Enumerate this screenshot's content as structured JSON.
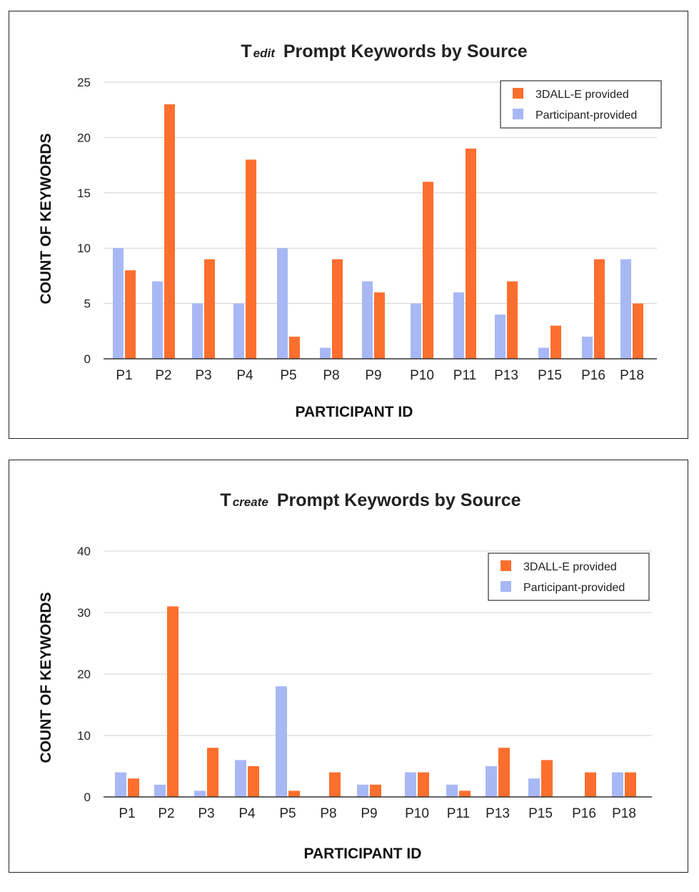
{
  "colors": {
    "provided": "#fc6f2e",
    "participant": "#a7b8f5"
  },
  "chart_data": [
    {
      "type": "bar",
      "title_main": "T",
      "title_sub": "edit",
      "title_rest": "Prompt Keywords by Source",
      "xlabel": "PARTICIPANT ID",
      "ylabel": "COUNT OF KEYWORDS",
      "ylim": [
        0,
        25
      ],
      "yticks": [
        0,
        5,
        10,
        15,
        20,
        25
      ],
      "grid": true,
      "legend_position": "top-right",
      "categories": [
        "P1",
        "P2",
        "P3",
        "P4",
        "P5",
        "P8",
        "P9",
        "P10",
        "P11",
        "P13",
        "P15",
        "P16",
        "P18"
      ],
      "series": [
        {
          "name": "3DALL-E provided",
          "color_key": "provided",
          "values": [
            8,
            23,
            9,
            18,
            2,
            9,
            6,
            16,
            19,
            7,
            3,
            9,
            5
          ]
        },
        {
          "name": "Participant-provided",
          "color_key": "participant",
          "values": [
            10,
            7,
            5,
            5,
            10,
            1,
            7,
            5,
            6,
            4,
            1,
            2,
            9
          ]
        }
      ]
    },
    {
      "type": "bar",
      "title_main": "T",
      "title_sub": "create",
      "title_rest": "Prompt Keywords by Source",
      "xlabel": "PARTICIPANT ID",
      "ylabel": "COUNT OF KEYWORDS",
      "ylim": [
        0,
        40
      ],
      "yticks": [
        0,
        10,
        20,
        30,
        40
      ],
      "grid": true,
      "legend_position": "top-right",
      "categories": [
        "P1",
        "P2",
        "P3",
        "P4",
        "P5",
        "P8",
        "P9",
        "P10",
        "P11",
        "P13",
        "P15",
        "P16",
        "P18"
      ],
      "series": [
        {
          "name": "3DALL-E provided",
          "color_key": "provided",
          "values": [
            3,
            31,
            8,
            5,
            1,
            4,
            2,
            4,
            1,
            8,
            6,
            4,
            4
          ]
        },
        {
          "name": "Participant-provided",
          "color_key": "participant",
          "values": [
            4,
            2,
            1,
            6,
            18,
            0,
            2,
            4,
            2,
            5,
            3,
            0,
            4
          ]
        }
      ]
    }
  ]
}
